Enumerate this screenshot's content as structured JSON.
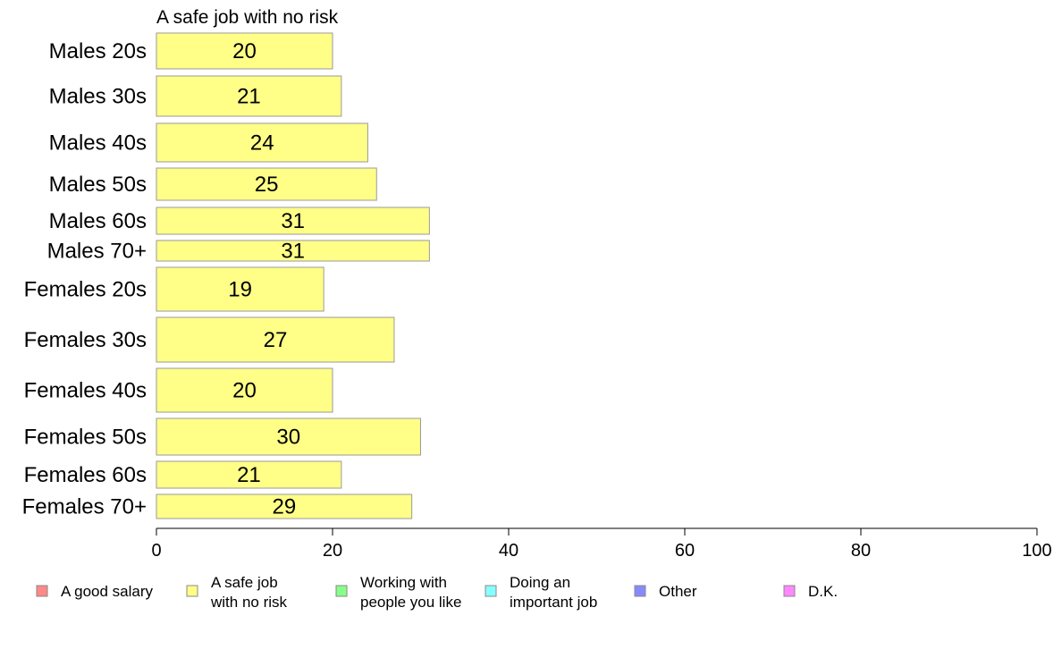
{
  "chart_data": {
    "type": "bar",
    "orientation": "horizontal",
    "title": "A safe job with no risk",
    "xlim": [
      0,
      100
    ],
    "xticks": [
      "0",
      "20",
      "40",
      "60",
      "80",
      "100"
    ],
    "grid": false,
    "legend_placement": "bottom",
    "categories": [
      "Males 20s",
      "Males 30s",
      "Males 40s",
      "Males 50s",
      "Males 60s",
      "Males 70+",
      "Females 20s",
      "Females 30s",
      "Females 40s",
      "Females 50s",
      "Females 60s",
      "Females 70+"
    ],
    "values": [
      20,
      21,
      24,
      25,
      31,
      31,
      19,
      27,
      20,
      30,
      21,
      29
    ],
    "data_labels": [
      "20",
      "21",
      "24",
      "25",
      "31",
      "31",
      "19",
      "27",
      "20",
      "30",
      "21",
      "29"
    ],
    "bar_color": "#ffff88",
    "bar_stroke": "#9a9a9a",
    "legend": [
      {
        "lines": [
          "A good salary"
        ],
        "color": "#ff8888"
      },
      {
        "lines": [
          "A safe job",
          "with no risk"
        ],
        "color": "#ffff88"
      },
      {
        "lines": [
          "Working with",
          "people you like"
        ],
        "color": "#88ff88"
      },
      {
        "lines": [
          "Doing an",
          "important job"
        ],
        "color": "#88ffff"
      },
      {
        "lines": [
          "Other"
        ],
        "color": "#8888ff"
      },
      {
        "lines": [
          "D.K."
        ],
        "color": "#ff88ff"
      }
    ]
  }
}
